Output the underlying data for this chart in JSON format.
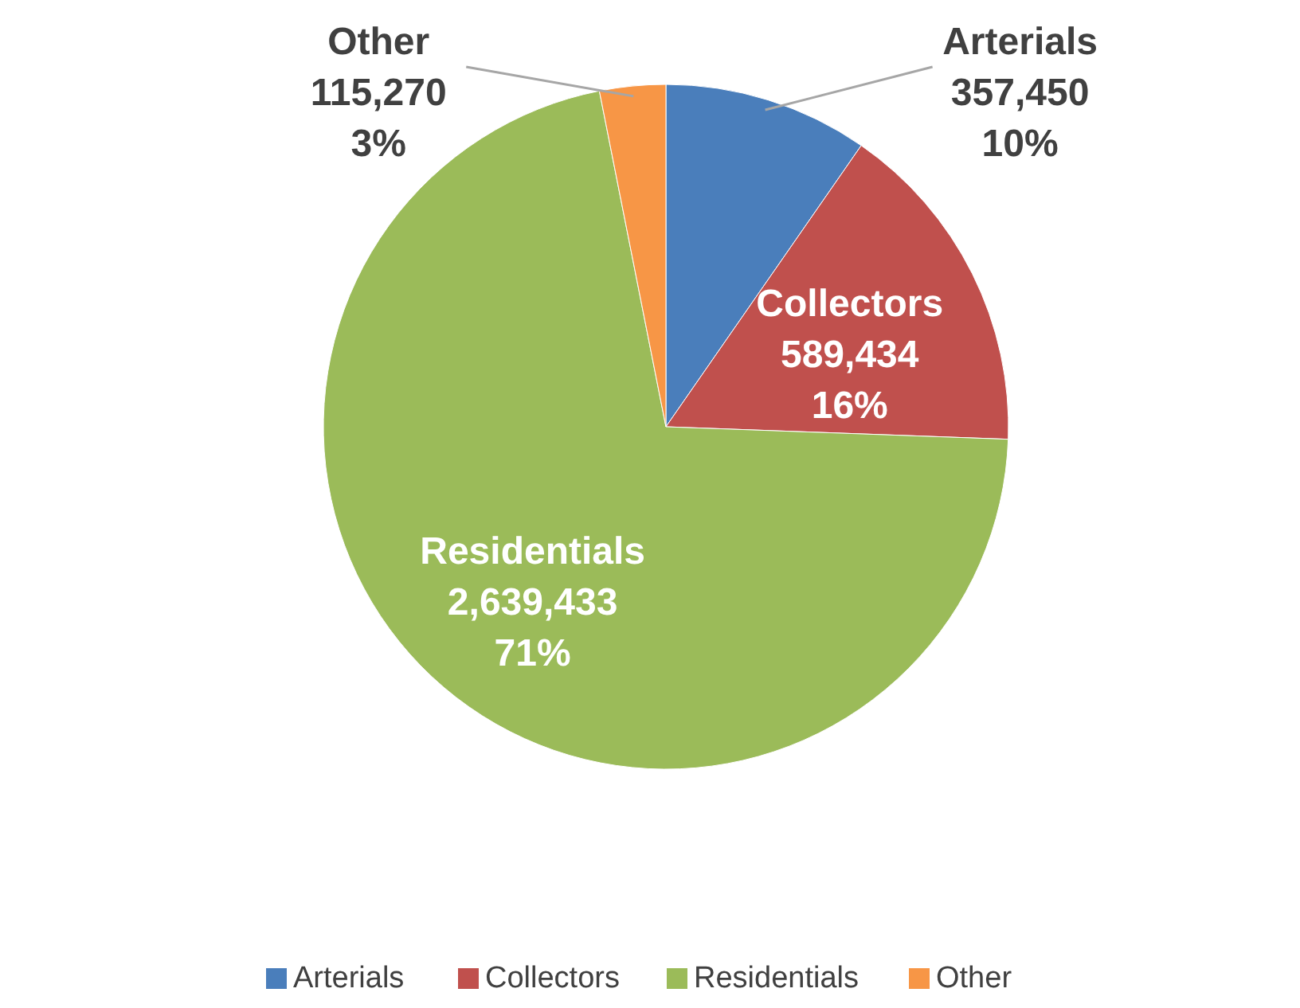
{
  "chart_data": {
    "type": "pie",
    "categories": [
      "Arterials",
      "Collectors",
      "Residentials",
      "Other"
    ],
    "values": [
      357450,
      589434,
      2639433,
      115270
    ],
    "colors": [
      "#4a7ebb",
      "#c0504d",
      "#9bbb59",
      "#f79646"
    ],
    "value_labels": [
      "357,450\n10%",
      "589,434\n16%",
      "2,639,433\n71%",
      "115,270\n3%"
    ],
    "legend": "bottom"
  }
}
